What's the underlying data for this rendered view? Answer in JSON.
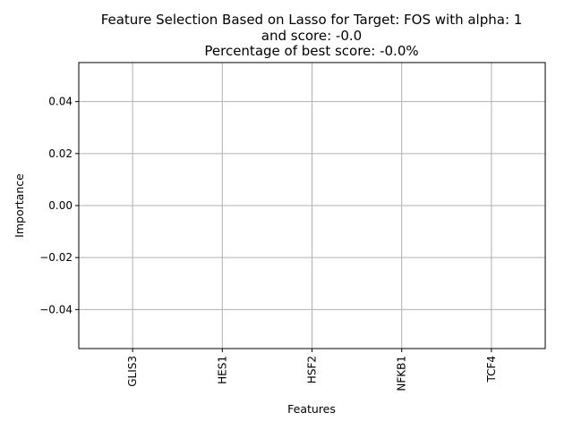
{
  "chart_data": {
    "type": "bar",
    "title_lines": [
      "Feature Selection Based on Lasso for Target: FOS with alpha: 1",
      "and score: -0.0",
      "Percentage of best score: -0.0%"
    ],
    "xlabel": "Features",
    "ylabel": "Importance",
    "categories": [
      "GLIS3",
      "HES1",
      "HSF2",
      "NFKB1",
      "TCF4"
    ],
    "values": [
      0,
      0,
      0,
      0,
      0
    ],
    "ylim": [
      -0.055,
      0.055
    ],
    "yticks": [
      -0.04,
      -0.02,
      0.0,
      0.02,
      0.04
    ],
    "ytick_labels": [
      "−0.04",
      "−0.02",
      "0.00",
      "0.02",
      "0.04"
    ],
    "grid": true,
    "colors": {
      "grid": "#b0b0b0",
      "axis": "#000000",
      "bar": "#1f77b4"
    }
  }
}
